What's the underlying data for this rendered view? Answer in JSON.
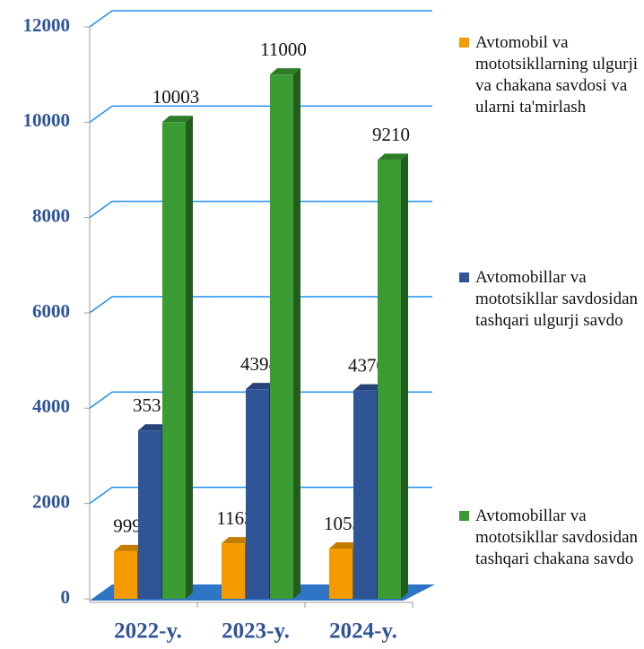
{
  "chart_data": {
    "type": "bar3d",
    "categories": [
      "2022-y.",
      "2023-y.",
      "2024-y."
    ],
    "series": [
      {
        "name": "Avtomobil va mototsikllarning ulgurji va chakana savdosi va ularni ta'mirlash",
        "color": "#f59b00",
        "values": [
          999,
          1163,
          1053
        ]
      },
      {
        "name": "Avtomobillar va mototsikllar savdosidan tashqari ulgurji savdo",
        "color": "#2f5597",
        "values": [
          3531,
          4398,
          4370
        ]
      },
      {
        "name": "Avtomobillar va mototsikllar savdosidan tashqari chakana savdo",
        "color": "#3a9b32",
        "values": [
          10003,
          11000,
          9210
        ]
      }
    ],
    "ylim": [
      0,
      12000
    ],
    "yticks": [
      0,
      2000,
      4000,
      6000,
      8000,
      10000,
      12000
    ],
    "grid": true,
    "legend": "right"
  }
}
